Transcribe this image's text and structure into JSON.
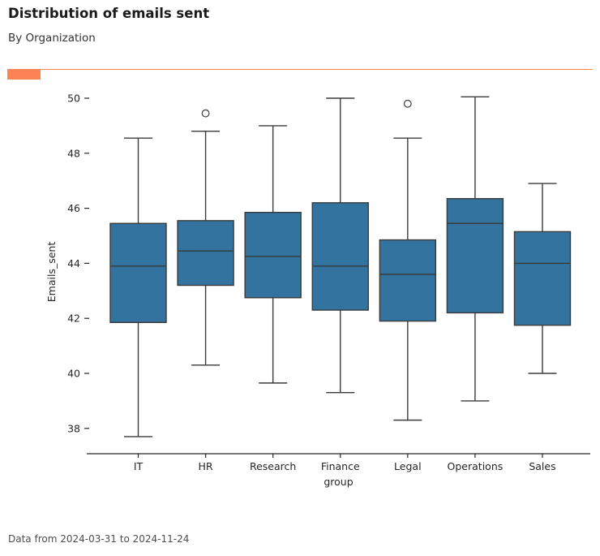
{
  "header": {
    "title": "Distribution of emails sent",
    "subtitle": "By Organization"
  },
  "footer": {
    "text": "Data from 2024-03-31 to 2024-11-24"
  },
  "colors": {
    "accent": "#fc8454",
    "box_fill": "#32739f",
    "box_edge": "#3a3a3a",
    "axis": "#262626",
    "tick_text": "#262626",
    "footer_text": "#4d4d4d"
  },
  "chart_data": {
    "type": "boxplot",
    "title": "Distribution of emails sent",
    "subtitle": "By Organization",
    "xlabel": "group",
    "ylabel": "Emails_sent",
    "ylim": [
      37.1,
      50.6
    ],
    "yticks": [
      38,
      40,
      42,
      44,
      46,
      48,
      50
    ],
    "grid": false,
    "legend": "none",
    "categories": [
      "IT",
      "HR",
      "Research",
      "Finance",
      "Legal",
      "Operations",
      "Sales"
    ],
    "series": [
      {
        "category": "IT",
        "whisker_low": 37.7,
        "q1": 41.85,
        "median": 43.9,
        "q3": 45.45,
        "whisker_high": 48.55,
        "outliers": []
      },
      {
        "category": "HR",
        "whisker_low": 40.3,
        "q1": 43.2,
        "median": 44.45,
        "q3": 45.55,
        "whisker_high": 48.8,
        "outliers": [
          49.45
        ]
      },
      {
        "category": "Research",
        "whisker_low": 39.65,
        "q1": 42.75,
        "median": 44.25,
        "q3": 45.85,
        "whisker_high": 49.0,
        "outliers": []
      },
      {
        "category": "Finance",
        "whisker_low": 39.3,
        "q1": 42.3,
        "median": 43.9,
        "q3": 46.2,
        "whisker_high": 50.0,
        "outliers": []
      },
      {
        "category": "Legal",
        "whisker_low": 38.3,
        "q1": 41.9,
        "median": 43.6,
        "q3": 44.85,
        "whisker_high": 48.55,
        "outliers": [
          49.8
        ]
      },
      {
        "category": "Operations",
        "whisker_low": 39.0,
        "q1": 42.2,
        "median": 45.45,
        "q3": 46.35,
        "whisker_high": 50.05,
        "outliers": []
      },
      {
        "category": "Sales",
        "whisker_low": 40.0,
        "q1": 41.75,
        "median": 44.0,
        "q3": 45.15,
        "whisker_high": 46.9,
        "outliers": []
      }
    ]
  }
}
